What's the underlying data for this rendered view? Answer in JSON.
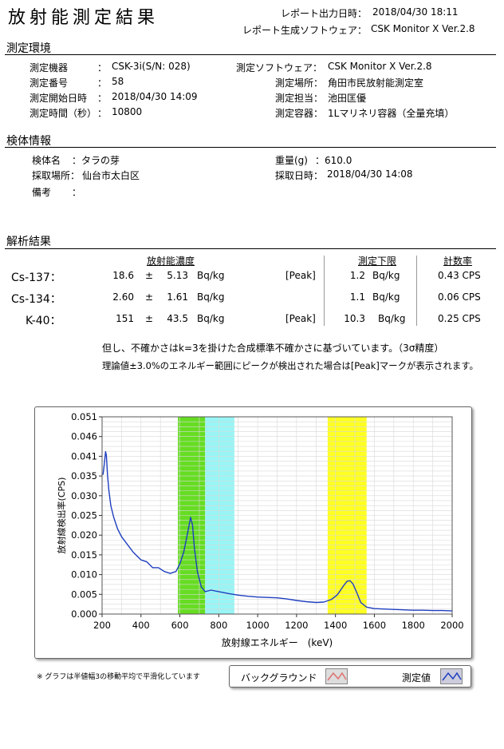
{
  "header": {
    "title": "放射能測定結果",
    "output_datetime_label": "レポート出力日時：",
    "output_datetime": "2018/04/30 18:11",
    "software_label": "レポート生成ソフトウェア：",
    "software": "CSK Monitor X Ver.2.8"
  },
  "env": {
    "section_title": "測定環境",
    "device_label": "測定機器",
    "device": "CSK-3i(S/N: 028)",
    "number_label": "測定番号",
    "number": "58",
    "start_label": "測定開始日時",
    "start": "2018/04/30 14:09",
    "time_label": "測定時間（秒）",
    "time": "10800",
    "sw_label": "測定ソフトウェア：",
    "sw": "CSK Monitor X Ver.2.8",
    "place_label": "測定場所：",
    "place": "角田市民放射能測定室",
    "person_label": "測定担当：",
    "person": "池田匡優",
    "container_label": "測定容器：",
    "container": "1Lマリネリ容器（全量充填）",
    "colon": "："
  },
  "sample": {
    "section_title": "検体情報",
    "name_label": "検体名",
    "name": "：タラの芽",
    "location_label": "採取場所：",
    "location": "仙台市太白区",
    "note_label": "備考",
    "note": "：",
    "weight_label": "重量(g)",
    "weight": "：610.0",
    "date_label": "採取日時：",
    "date": "2018/04/30 14:08"
  },
  "analysis": {
    "section_title": "解析結果",
    "col_conc": "放射能濃度",
    "col_limit": "測定下限",
    "col_rate": "計数率",
    "rows": [
      {
        "nuclide": "Cs-137：",
        "value": "18.6",
        "pm": "±",
        "err": "5.13",
        "unit": "Bq/kg",
        "peak": "[Peak]",
        "limit": "1.2",
        "limit_unit": "Bq/kg",
        "rate": "0.43 CPS"
      },
      {
        "nuclide": "Cs-134：",
        "value": "2.60",
        "pm": "±",
        "err": "1.61",
        "unit": "Bq/kg",
        "peak": "",
        "limit": "1.1",
        "limit_unit": "Bq/kg",
        "rate": "0.06 CPS"
      },
      {
        "nuclide": "K-40：",
        "value": "151",
        "pm": "±",
        "err": "43.5",
        "unit": "Bq/kg",
        "peak": "[Peak]",
        "limit": "10.3",
        "limit_unit": "Bq/kg",
        "rate": "0.25 CPS"
      }
    ],
    "note1": "但し、不確かさはk=3を掛けた合成標準不確かさに基づいています。（3σ精度）",
    "note2": "理論値±3.0%のエネルギー範囲にピークが検出された場合は[Peak]マークが表示されます。"
  },
  "footer": {
    "smoothing_note": "※ グラフは半値幅3の移動平均で平滑化しています",
    "legend_bg": "バックグラウンド",
    "legend_meas": "測定値"
  },
  "chart_data": {
    "type": "line",
    "xlabel": "放射線エネルギー　(keV)",
    "ylabel": "放射線検出率(CPS)",
    "xlim": [
      200,
      2000
    ],
    "ylim": [
      0,
      0.051
    ],
    "xticks": [
      "200",
      "400",
      "600",
      "800",
      "1000",
      "1200",
      "1400",
      "1600",
      "1800",
      "2000"
    ],
    "yticks": [
      "0.000",
      "0.005",
      "0.010",
      "0.015",
      "0.020",
      "0.025",
      "0.030",
      "0.035",
      "0.041",
      "0.046",
      "0.051"
    ],
    "grid": true,
    "bands": [
      {
        "from": 590,
        "to": 730,
        "color": "#66dd22"
      },
      {
        "from": 730,
        "to": 880,
        "color": "#99f5f5"
      },
      {
        "from": 1360,
        "to": 1560,
        "color": "#ffff22"
      }
    ],
    "series": [
      {
        "name": "測定値",
        "color": "#1f3fbf",
        "x": [
          205,
          212,
          218,
          222,
          228,
          235,
          245,
          260,
          280,
          300,
          330,
          360,
          400,
          430,
          460,
          490,
          520,
          550,
          580,
          600,
          620,
          640,
          655,
          665,
          675,
          690,
          710,
          730,
          760,
          800,
          850,
          900,
          950,
          1000,
          1050,
          1100,
          1150,
          1200,
          1250,
          1300,
          1340,
          1380,
          1410,
          1440,
          1460,
          1475,
          1490,
          1510,
          1530,
          1560,
          1600,
          1650,
          1700,
          1750,
          1800,
          1850,
          1900,
          1950,
          2000
        ],
        "values": [
          0.036,
          0.039,
          0.042,
          0.041,
          0.036,
          0.032,
          0.028,
          0.025,
          0.022,
          0.02,
          0.018,
          0.016,
          0.014,
          0.0135,
          0.012,
          0.012,
          0.011,
          0.0105,
          0.011,
          0.013,
          0.016,
          0.021,
          0.025,
          0.023,
          0.017,
          0.011,
          0.007,
          0.0058,
          0.0062,
          0.0058,
          0.0053,
          0.0049,
          0.0046,
          0.0044,
          0.0043,
          0.0042,
          0.0039,
          0.0035,
          0.0032,
          0.003,
          0.0031,
          0.0038,
          0.005,
          0.0072,
          0.0085,
          0.0086,
          0.0078,
          0.0055,
          0.003,
          0.0018,
          0.0014,
          0.0013,
          0.0012,
          0.0011,
          0.001,
          0.001,
          0.0009,
          0.0009,
          0.0008
        ]
      }
    ]
  }
}
